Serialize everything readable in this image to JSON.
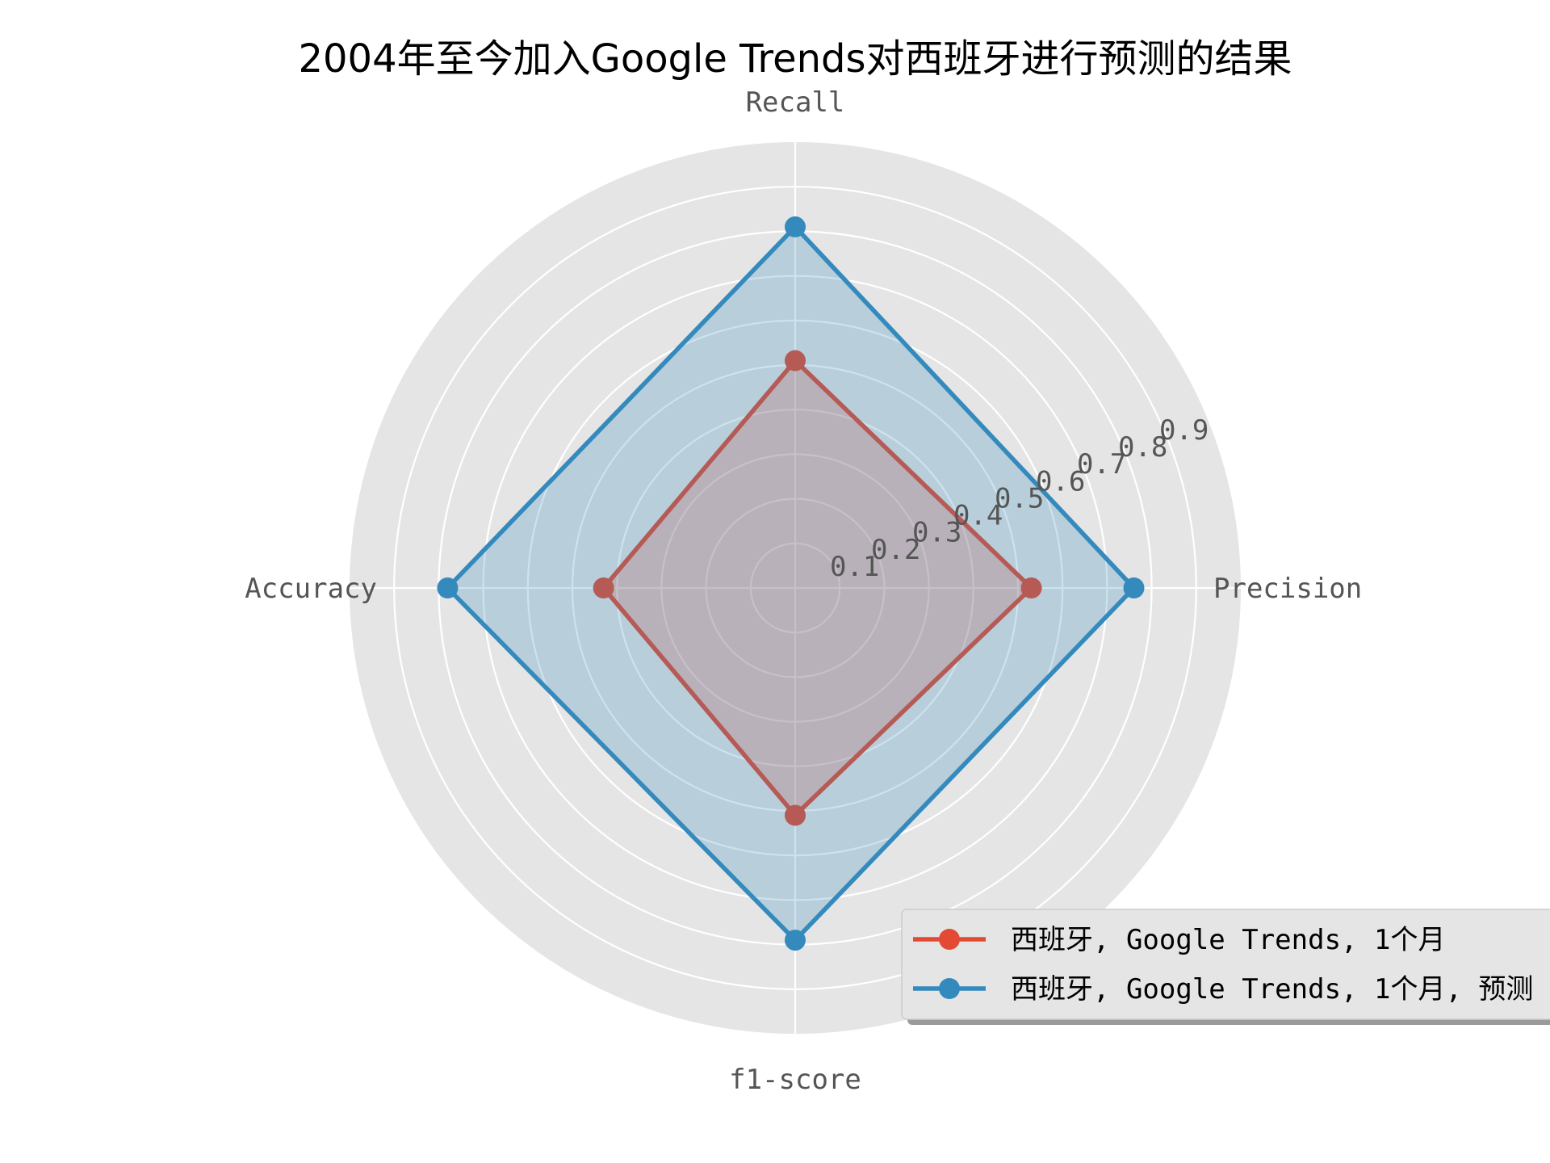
{
  "chart_data": {
    "type": "radar",
    "title": "2004年至今加入Google Trends对西班牙进行预测的结果",
    "axes": [
      "Precision",
      "Recall",
      "Accuracy",
      "f1-score"
    ],
    "radial_ticks": [
      "0.1",
      "0.2",
      "0.3",
      "0.4",
      "0.5",
      "0.6",
      "0.7",
      "0.8",
      "0.9"
    ],
    "rlim": [
      0,
      1.0
    ],
    "grid": true,
    "legend_position": "lower-right",
    "series": [
      {
        "name": "西班牙, Google Trends, 1个月",
        "color": "#E24A33",
        "values": [
          0.53,
          0.51,
          0.43,
          0.51
        ]
      },
      {
        "name": "西班牙, Google Trends, 1个月, 预测",
        "color": "#348ABD",
        "values": [
          0.76,
          0.81,
          0.78,
          0.79
        ]
      }
    ],
    "colors": {
      "plot_background": "#E5E5E5",
      "grid": "#FFFFFF"
    }
  }
}
